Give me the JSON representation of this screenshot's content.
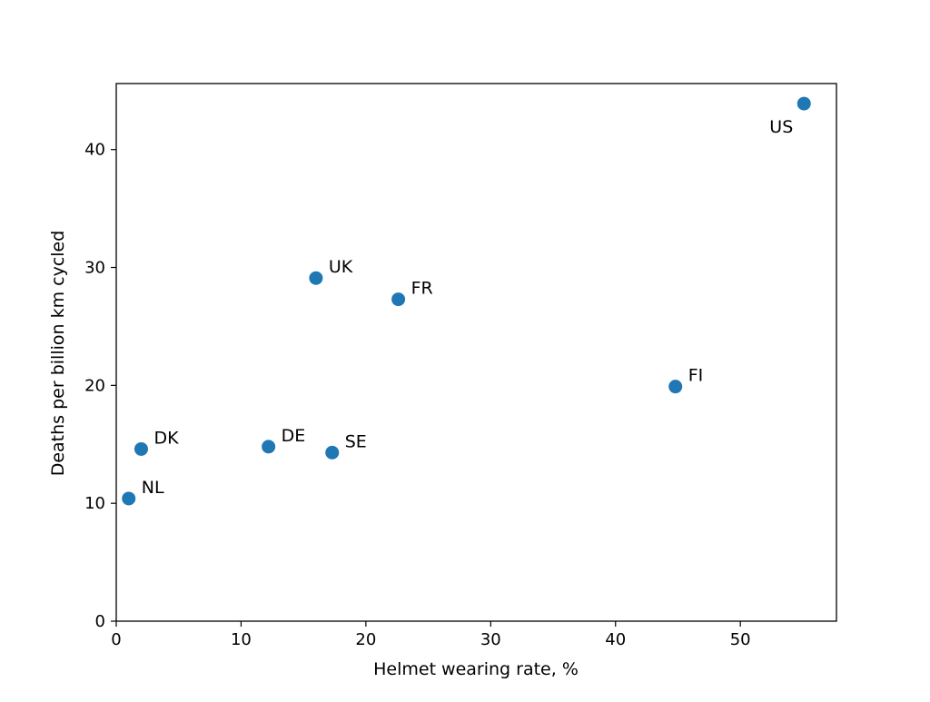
{
  "chart_data": {
    "type": "scatter",
    "title": "",
    "xlabel": "Helmet wearing rate, %",
    "ylabel": "Deaths per billion km cycled",
    "xlim": [
      0,
      57.7
    ],
    "ylim": [
      0,
      45.6
    ],
    "xticks": [
      "0",
      "10",
      "20",
      "30",
      "40",
      "50"
    ],
    "yticks": [
      "0",
      "10",
      "20",
      "30",
      "40"
    ],
    "grid": false,
    "legend": "none",
    "marker_color": "#1f77b4",
    "points": [
      {
        "label": "NL",
        "x": 1.0,
        "y": 10.4,
        "label_position": "upper-right"
      },
      {
        "label": "DK",
        "x": 2.0,
        "y": 14.6,
        "label_position": "upper-right"
      },
      {
        "label": "DE",
        "x": 12.2,
        "y": 14.8,
        "label_position": "upper-right"
      },
      {
        "label": "SE",
        "x": 17.3,
        "y": 14.3,
        "label_position": "upper-right"
      },
      {
        "label": "UK",
        "x": 16.0,
        "y": 29.1,
        "label_position": "upper-right"
      },
      {
        "label": "FR",
        "x": 22.6,
        "y": 27.3,
        "label_position": "upper-right"
      },
      {
        "label": "FI",
        "x": 44.8,
        "y": 19.9,
        "label_position": "upper-right"
      },
      {
        "label": "US",
        "x": 55.1,
        "y": 43.9,
        "label_position": "below-left"
      }
    ]
  }
}
